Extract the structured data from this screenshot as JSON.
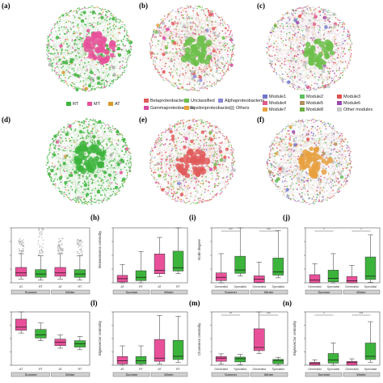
{
  "panels": {
    "a": "(a)",
    "b": "(b)",
    "c": "(c)",
    "d": "(d)",
    "e": "(e)",
    "f": "(f)",
    "h": "(h)",
    "i": "(i)",
    "j": "(j)",
    "l": "(l)",
    "m": "(m)",
    "n": "(n)"
  },
  "legends": {
    "habitat": [
      {
        "label": "RT",
        "color": "#3cb43c"
      },
      {
        "label": "MT",
        "color": "#e8519a"
      },
      {
        "label": "AT",
        "color": "#d89a2a"
      }
    ],
    "taxa": [
      {
        "label": "Betaproteobacteria",
        "color": "#e05a5a"
      },
      {
        "label": "Unclassified",
        "color": "#6cbf4a"
      },
      {
        "label": "Alphaproteobacteria",
        "color": "#8a88d8"
      },
      {
        "label": "Gammaproteobacteria",
        "color": "#d84aa0"
      },
      {
        "label": "Epsilonproteobacteria",
        "color": "#e8a23a"
      },
      {
        "label": "Others",
        "color": "#bdbdbd"
      }
    ],
    "modules": [
      {
        "label": "Module1",
        "color": "#6f77c8"
      },
      {
        "label": "Module2",
        "color": "#5fbf5f"
      },
      {
        "label": "Module3",
        "color": "#e05050"
      },
      {
        "label": "Module4",
        "color": "#e05a8a"
      },
      {
        "label": "Module5",
        "color": "#b09060"
      },
      {
        "label": "Module6",
        "color": "#9a4ab0"
      },
      {
        "label": "Module7",
        "color": "#e8a040"
      },
      {
        "label": "Module8",
        "color": "#6ab040"
      },
      {
        "label": "Other modules",
        "color": "#c8c8c8"
      }
    ]
  },
  "charts": {
    "season_summer": "Summer",
    "season_winter": "Winter",
    "g_xticks": [
      "AT",
      "RT",
      "AT",
      "RT"
    ],
    "h_ylabel": "Betweenness centrality",
    "i_ylabel": "Node degree",
    "l_ylabel": "Eigenvector centrality",
    "m_ylabel": "Closeness centrality",
    "n_ylabel": "Eigenvector centrality",
    "gen_spec": [
      "Generalist",
      "Specialist",
      "Generalist",
      "Specialist"
    ],
    "sig_ns": "***",
    "sig_star": "*",
    "sig_dstar": "**"
  },
  "chart_data": [
    {
      "type": "box",
      "panel": "g",
      "categories": [
        "AT",
        "RT",
        "AT",
        "RT"
      ],
      "colors": [
        "#e8519a",
        "#3cb43c",
        "#e8519a",
        "#3cb43c"
      ],
      "medians": [
        9,
        8,
        9,
        8
      ],
      "ylim": [
        0,
        50
      ]
    },
    {
      "type": "box",
      "panel": "h",
      "categories": [
        "AT",
        "RT",
        "AT",
        "RT"
      ],
      "colors": [
        "#e8519a",
        "#3cb43c",
        "#e8519a",
        "#3cb43c"
      ],
      "ylabel": "Betweenness centrality",
      "medians": [
        1500,
        2000,
        4500,
        5500
      ],
      "ylim": [
        0,
        20000
      ]
    },
    {
      "type": "box",
      "panel": "i",
      "categories": [
        "Generalist",
        "Specialist",
        "Generalist",
        "Specialist"
      ],
      "colors": [
        "#e8519a",
        "#3cb43c",
        "#e8519a",
        "#3cb43c"
      ],
      "ylabel": "Node degree",
      "medians": [
        3,
        7,
        2,
        6
      ],
      "ylim": [
        0,
        30
      ]
    },
    {
      "type": "box",
      "panel": "j",
      "categories": [
        "Generalist",
        "Specialist",
        "Generalist",
        "Specialist"
      ],
      "colors": [
        "#e8519a",
        "#3cb43c",
        "#e8519a",
        "#3cb43c"
      ],
      "medians": [
        1200,
        2000,
        900,
        3000
      ],
      "ylim": [
        0,
        25000
      ]
    },
    {
      "type": "box",
      "panel": "k",
      "categories": [
        "AT",
        "RT",
        "AT",
        "RT"
      ],
      "colors": [
        "#e8519a",
        "#3cb43c",
        "#e8519a",
        "#3cb43c"
      ],
      "medians": [
        -0.7,
        -0.8,
        -0.9,
        -0.92
      ],
      "ylim": [
        -1.2,
        -0.5
      ]
    },
    {
      "type": "box",
      "panel": "l",
      "categories": [
        "AT",
        "RT",
        "AT",
        "RT"
      ],
      "colors": [
        "#e8519a",
        "#3cb43c",
        "#e8519a",
        "#3cb43c"
      ],
      "ylabel": "Eigenvector centrality",
      "medians": [
        0.05,
        0.05,
        0.08,
        0.1
      ],
      "ylim": [
        0,
        0.6
      ]
    },
    {
      "type": "box",
      "panel": "m",
      "categories": [
        "Generalist",
        "Specialist",
        "Generalist",
        "Specialist"
      ],
      "colors": [
        "#e8519a",
        "#3cb43c",
        "#e8519a",
        "#3cb43c"
      ],
      "ylabel": "Closeness centrality",
      "medians": [
        0.12,
        0.11,
        0.3,
        0.08
      ],
      "ylim": [
        0,
        0.9
      ]
    },
    {
      "type": "box",
      "panel": "n",
      "categories": [
        "Generalist",
        "Specialist",
        "Generalist",
        "Specialist"
      ],
      "colors": [
        "#e8519a",
        "#3cb43c",
        "#e8519a",
        "#3cb43c"
      ],
      "ylabel": "Eigenvector centrality",
      "medians": [
        0.02,
        0.06,
        0.03,
        0.1
      ],
      "ylim": [
        0,
        0.6
      ]
    }
  ]
}
